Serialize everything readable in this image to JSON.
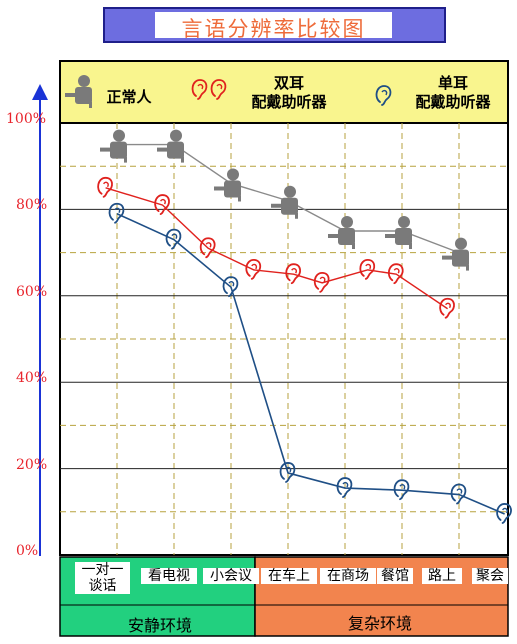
{
  "title": "言语分辨率比较图",
  "legend": {
    "normal": "正常人",
    "binaural": "双耳\n配戴助听器",
    "monaural": "单耳\n配戴助听器"
  },
  "colors": {
    "title_bg": "#6d6de0",
    "legend_bg": "#f9f58e",
    "quiet_bg": "#22d07f",
    "complex_bg": "#f2844e",
    "normal_line": "#8a8a8a",
    "binaural_line": "#e0221e",
    "monaural_line": "#1f4f86",
    "axis": "#1a33d6",
    "tick_text": "#e8242c"
  },
  "icons": {
    "normal": "person-icon",
    "binaural": "red-ear-icon",
    "monaural": "blue-ear-icon"
  },
  "groups": {
    "quiet": "安静环境",
    "complex": "复杂环境"
  },
  "chart_data": {
    "type": "line",
    "title": "言语分辨率比较图",
    "categories": [
      "一对一谈话",
      "看电视",
      "小会议",
      "在车上",
      "在商场",
      "餐馆",
      "路上",
      "聚会"
    ],
    "category_labels": [
      "一对一\n谈话",
      "看电视",
      "小会议",
      "在车上",
      "在商场",
      "餐馆",
      "路上",
      "聚会"
    ],
    "y_ticks": [
      "0%",
      "20%",
      "40%",
      "60%",
      "80%",
      "100%"
    ],
    "ylim": [
      0,
      100
    ],
    "grid": true,
    "legend_position": "top",
    "series": [
      {
        "name": "正常人",
        "x": [
          1,
          2,
          3,
          4,
          5,
          6,
          7
        ],
        "values": [
          95,
          95,
          86,
          82,
          75,
          75,
          70
        ]
      },
      {
        "name": "双耳配戴助听器",
        "x": [
          0.8,
          1.8,
          2.6,
          3.4,
          4.1,
          4.6,
          5.4,
          5.9,
          6.8
        ],
        "values": [
          85,
          81,
          71,
          66,
          65,
          63,
          66,
          65,
          57
        ]
      },
      {
        "name": "单耳配戴助听器",
        "x": [
          1,
          2,
          3,
          4,
          5,
          6,
          7,
          7.8
        ],
        "values": [
          79,
          73,
          62,
          19,
          15.5,
          15,
          14,
          9.5
        ]
      }
    ]
  }
}
